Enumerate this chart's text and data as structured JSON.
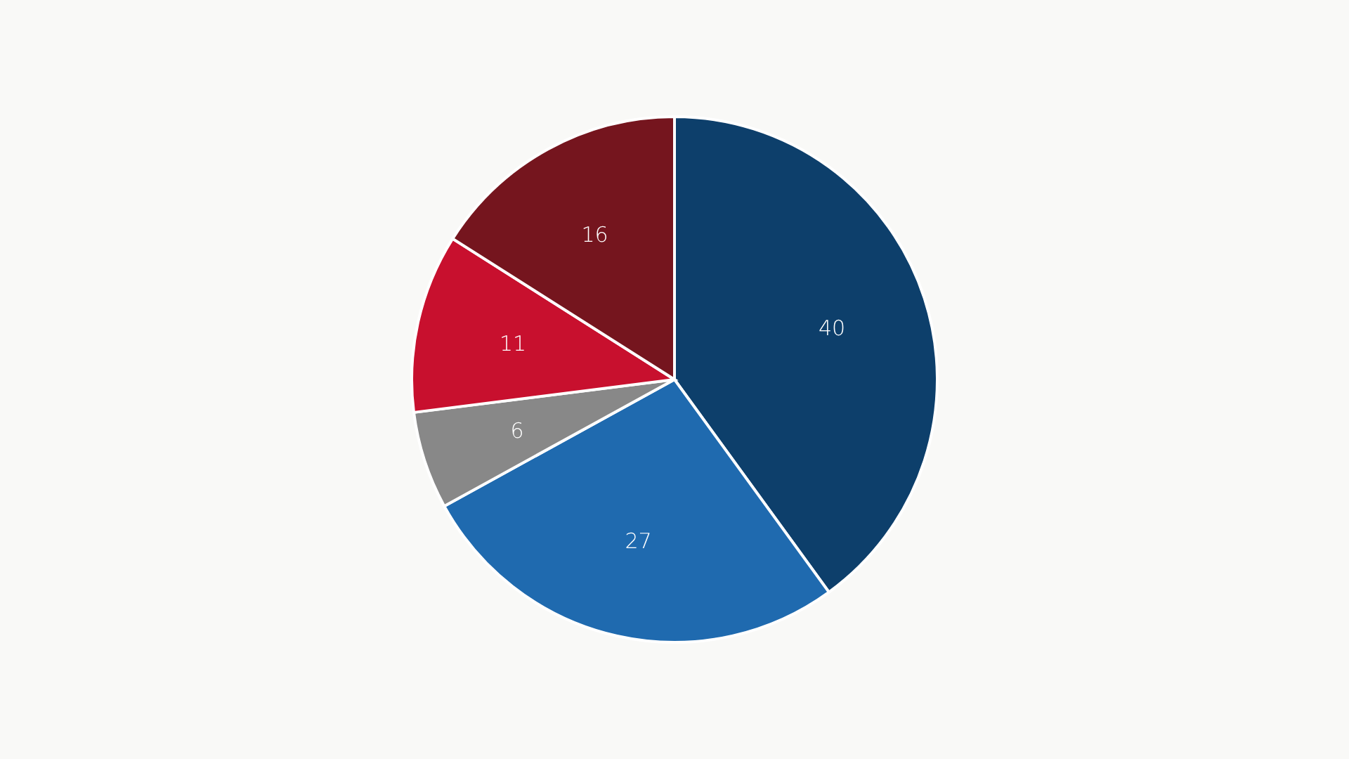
{
  "chart_data": {
    "type": "pie",
    "categories": [
      null,
      null,
      null,
      null,
      null
    ],
    "values": [
      40,
      27,
      6,
      11,
      16
    ],
    "colors": [
      "#0d3f6b",
      "#1f6aaf",
      "#888888",
      "#c8102e",
      "#75151e"
    ],
    "data_labels": true
  }
}
